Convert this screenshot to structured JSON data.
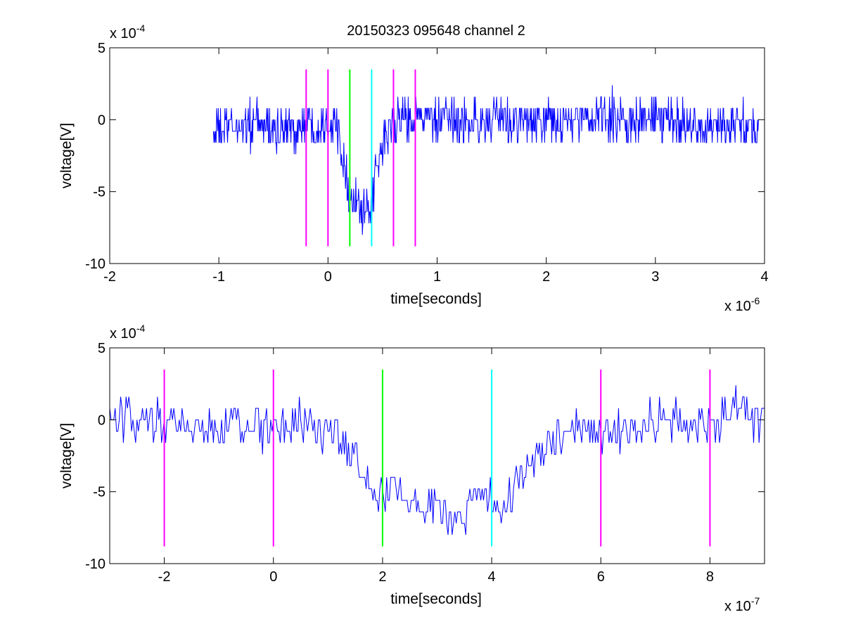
{
  "figure": {
    "title": "20150323 095648 channel 2",
    "background": "#ffffff"
  },
  "chart_data": [
    {
      "type": "line",
      "title": "20150323 095648 channel 2",
      "xlabel": "time[seconds]",
      "ylabel": "voltage[V]",
      "x_multiplier_label": {
        "base": "x 10",
        "exp": "-6"
      },
      "y_multiplier_label": {
        "base": "x 10",
        "exp": "-4"
      },
      "xlim": [
        -2,
        4
      ],
      "ylim": [
        -10,
        5
      ],
      "xticks": [
        -2,
        -1,
        0,
        1,
        2,
        3,
        4
      ],
      "xtick_labels": [
        "-2",
        "-1",
        "0",
        "1",
        "2",
        "3",
        "4"
      ],
      "yticks": [
        -10,
        -5,
        0,
        5
      ],
      "ytick_labels": [
        "-10",
        "-5",
        "0",
        "5"
      ],
      "grid": false,
      "series": [
        {
          "color": "#0000ff",
          "x": [
            -1.05,
            -0.8,
            -0.6,
            -0.4,
            -0.3,
            -0.2,
            -0.1,
            0.0,
            0.1,
            0.15,
            0.2,
            0.25,
            0.3,
            0.35,
            0.4,
            0.45,
            0.5,
            0.6,
            0.8,
            1.0,
            1.5,
            2.0,
            2.5,
            3.0,
            3.5,
            3.95
          ],
          "y": [
            -1,
            -0.3,
            -0.4,
            -0.8,
            -0.6,
            -0.3,
            -0.5,
            0,
            -0.7,
            -2.8,
            -5.6,
            -5.4,
            -6.4,
            -6.8,
            -5.6,
            -3.6,
            -1.6,
            -0.3,
            0.4,
            -0.2,
            -0.1,
            -0.2,
            0.1,
            0,
            -0.4,
            -0.5
          ]
        }
      ],
      "markers": [
        {
          "x": -0.2,
          "color": "#ff00ff",
          "ymin": -8.8,
          "ymax": 3.5
        },
        {
          "x": 0.0,
          "color": "#ff00ff",
          "ymin": -8.8,
          "ymax": 3.5
        },
        {
          "x": 0.2,
          "color": "#00ff00",
          "ymin": -8.8,
          "ymax": 3.5
        },
        {
          "x": 0.4,
          "color": "#00ffff",
          "ymin": -8.8,
          "ymax": 3.5
        },
        {
          "x": 0.6,
          "color": "#ff00ff",
          "ymin": -8.8,
          "ymax": 3.5
        },
        {
          "x": 0.8,
          "color": "#ff00ff",
          "ymin": -8.8,
          "ymax": 3.5
        }
      ]
    },
    {
      "type": "line",
      "title": "",
      "xlabel": "time[seconds]",
      "ylabel": "voltage[V]",
      "x_multiplier_label": {
        "base": "x 10",
        "exp": "-7"
      },
      "y_multiplier_label": {
        "base": "x 10",
        "exp": "-4"
      },
      "xlim": [
        -3,
        9
      ],
      "ylim": [
        -10,
        5
      ],
      "xticks": [
        -2,
        0,
        2,
        4,
        6,
        8
      ],
      "xtick_labels": [
        "-2",
        "0",
        "2",
        "4",
        "6",
        "8"
      ],
      "yticks": [
        -10,
        -5,
        0,
        5
      ],
      "ytick_labels": [
        "-10",
        "-5",
        "0",
        "5"
      ],
      "grid": false,
      "series": [
        {
          "color": "#0000ff",
          "x": [
            -3.0,
            -2.5,
            -2.0,
            -1.5,
            -1.0,
            -0.5,
            0.0,
            0.5,
            1.0,
            1.5,
            1.75,
            2.0,
            2.25,
            2.5,
            2.75,
            3.0,
            3.25,
            3.5,
            3.75,
            4.0,
            4.25,
            4.5,
            4.75,
            5.0,
            5.5,
            6.0,
            6.5,
            7.0,
            7.5,
            8.0,
            8.5,
            9.0
          ],
          "y": [
            0,
            -0.3,
            -0.6,
            -0.4,
            -0.8,
            -0.2,
            -0.6,
            -0.3,
            -0.9,
            -2.5,
            -5.4,
            -5.3,
            -4.6,
            -5.6,
            -6.1,
            -5.9,
            -7.0,
            -6.3,
            -5.2,
            -5.6,
            -5.8,
            -4.2,
            -2.8,
            -1.7,
            -0.9,
            -0.8,
            -0.6,
            -0.3,
            -0.4,
            -0.1,
            0.8,
            0.2
          ]
        }
      ],
      "markers": [
        {
          "x": -2,
          "color": "#ff00ff",
          "ymin": -8.8,
          "ymax": 3.5
        },
        {
          "x": 0,
          "color": "#ff00ff",
          "ymin": -8.8,
          "ymax": 3.5
        },
        {
          "x": 2,
          "color": "#00ff00",
          "ymin": -8.8,
          "ymax": 3.5
        },
        {
          "x": 4,
          "color": "#00ffff",
          "ymin": -8.8,
          "ymax": 3.5
        },
        {
          "x": 6,
          "color": "#ff00ff",
          "ymin": -8.8,
          "ymax": 3.5
        },
        {
          "x": 8,
          "color": "#ff00ff",
          "ymin": -8.8,
          "ymax": 3.5
        }
      ]
    }
  ]
}
